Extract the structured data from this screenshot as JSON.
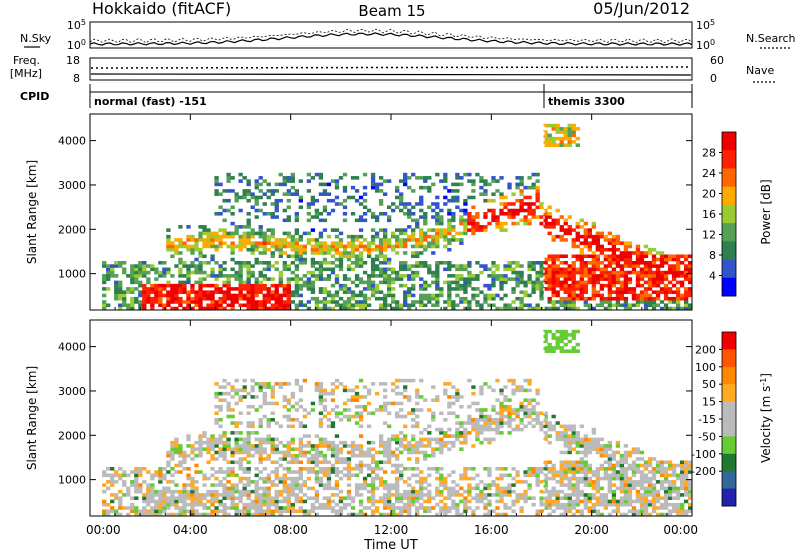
{
  "header": {
    "station": "Hokkaido (fitACF)",
    "beam": "Beam 15",
    "date": "05/Jun/2012"
  },
  "left_labels": {
    "nsky": "N.Sky",
    "freq": "Freq.",
    "freq_unit": "[MHz]",
    "cpid": "CPID"
  },
  "right_labels": {
    "nsearch": "N.Search",
    "nave": "Nave"
  },
  "noise_panel": {
    "ticks_left": [
      "10^5",
      "10^0"
    ],
    "ticks_right": [
      "10^5",
      "10^0"
    ]
  },
  "freq_panel": {
    "ticks_left": [
      "18",
      "8"
    ],
    "ticks_right": [
      "60",
      "0"
    ]
  },
  "cpid_panel": {
    "modes": [
      {
        "label": "normal (fast) -151",
        "start_hour": 0
      },
      {
        "label": "themis 3300",
        "start_hour": 18.1
      }
    ]
  },
  "colors": {
    "power_scale": [
      "#0000ff",
      "#3355cc",
      "#2f7f4f",
      "#55a055",
      "#99cc33",
      "#ffaa00",
      "#ff6600",
      "#ff2200",
      "#ee0000"
    ],
    "velocity_scale": [
      "#2222aa",
      "#336699",
      "#227733",
      "#66cc33",
      "#bbbbbb",
      "#bbbbbb",
      "#ffaa22",
      "#ff8800",
      "#ff5500",
      "#ee0000"
    ]
  },
  "chart_data": [
    {
      "type": "heatmap",
      "panel": "power",
      "ylabel": "Slant Range [km]",
      "yticks": [
        "1000",
        "2000",
        "3000",
        "4000"
      ],
      "ylim": [
        180,
        4600
      ],
      "xlim": [
        0,
        24
      ],
      "colorbar": {
        "label": "Power [dB]",
        "ticks": [
          "4",
          "8",
          "12",
          "16",
          "20",
          "24",
          "28"
        ],
        "range": [
          0,
          32
        ]
      }
    },
    {
      "type": "heatmap",
      "panel": "velocity",
      "ylabel": "Slant Range [km]",
      "yticks": [
        "1000",
        "2000",
        "3000",
        "4000"
      ],
      "ylim": [
        180,
        4600
      ],
      "xlim": [
        0,
        24
      ],
      "colorbar": {
        "label": "Velocity [m s^-1]",
        "ticks": [
          "200",
          "100",
          "50",
          "15",
          "-15",
          "-50",
          "-100",
          "-200"
        ]
      }
    }
  ],
  "xaxis": {
    "label": "Time UT",
    "ticks": [
      "00:00",
      "04:00",
      "08:00",
      "12:00",
      "16:00",
      "20:00",
      "00:00"
    ]
  }
}
